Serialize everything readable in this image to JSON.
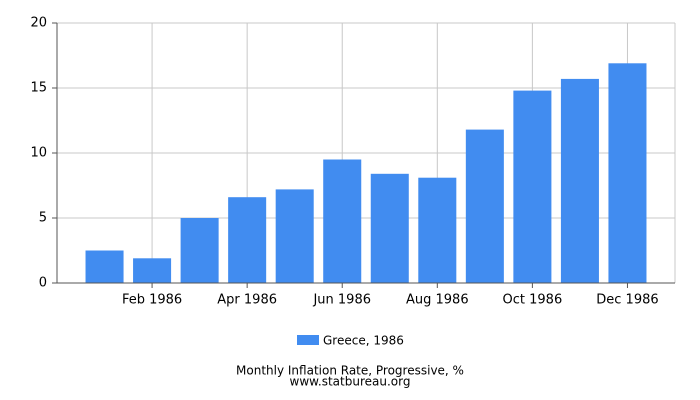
{
  "chart_data": {
    "type": "bar",
    "title": "Monthly Inflation Rate, Progressive, %",
    "subtitle": "www.statbureau.org",
    "categories": [
      null,
      "Feb 1986",
      null,
      "Apr 1986",
      null,
      "Jun 1986",
      null,
      "Aug 1986",
      null,
      "Oct 1986",
      null,
      "Dec 1986"
    ],
    "series": [
      {
        "name": "Greece, 1986",
        "color": "#418cf0",
        "values": [
          2.5,
          1.9,
          5.0,
          6.6,
          7.2,
          9.5,
          8.4,
          8.1,
          11.8,
          14.8,
          15.7,
          16.9
        ]
      }
    ],
    "ylim": [
      0,
      20
    ],
    "yticks": [
      0,
      5,
      10,
      15,
      20
    ],
    "grid": true
  }
}
